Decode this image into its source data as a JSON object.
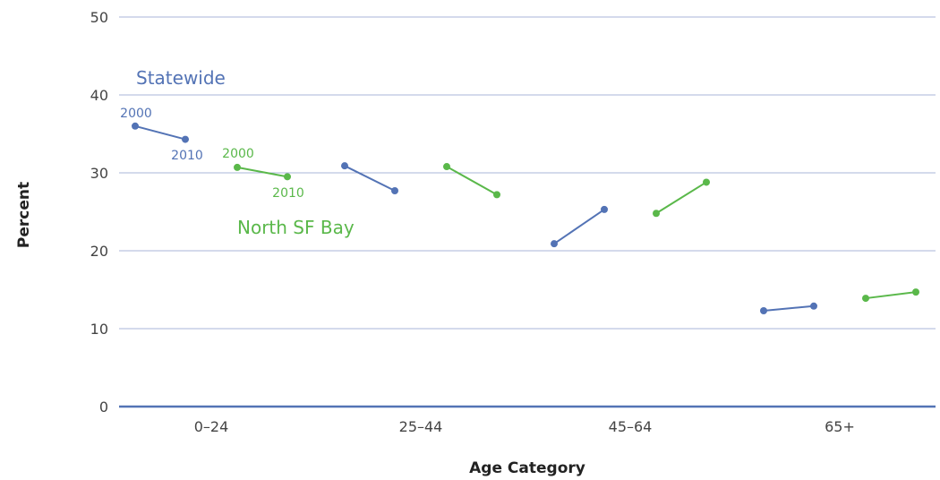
{
  "chart_data": {
    "type": "line",
    "title": "",
    "xlabel": "Age Category",
    "ylabel": "Percent",
    "ylim": [
      0,
      50
    ],
    "yticks": [
      0,
      10,
      20,
      30,
      40,
      50
    ],
    "grid": true,
    "categories": [
      "0–24",
      "25–44",
      "45–64",
      "65+"
    ],
    "x_points": [
      "2000",
      "2010"
    ],
    "series": [
      {
        "name": "Statewide",
        "color": "#5373b5",
        "values": [
          [
            36.0,
            34.3
          ],
          [
            30.9,
            27.7
          ],
          [
            20.9,
            25.3
          ],
          [
            12.3,
            12.9
          ]
        ]
      },
      {
        "name": "North SF Bay",
        "color": "#5ab84a",
        "values": [
          [
            30.7,
            29.5
          ],
          [
            30.8,
            27.2
          ],
          [
            24.8,
            28.8
          ],
          [
            13.9,
            14.7
          ]
        ]
      }
    ],
    "annotations": {
      "start_year": "2000",
      "end_year": "2010"
    }
  }
}
